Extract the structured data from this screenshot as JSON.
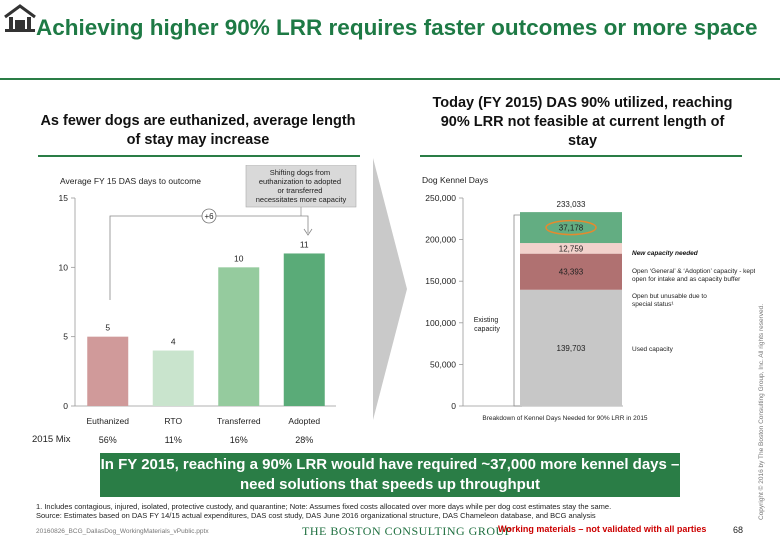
{
  "title": "Achieving higher 90% LRR requires faster outcomes or more space",
  "left_panel": {
    "heading": "As fewer dogs are euthanized, average length of stay may increase",
    "callout": "Shifting dogs from euthanization to adopted or transferred necessitates more capacity",
    "delta_label": "+6",
    "mix_label": "2015 Mix"
  },
  "right_panel": {
    "heading": "Today (FY 2015) DAS 90% utilized, reaching 90% LRR not feasible at current length of stay",
    "existing_label": "Existing capacity",
    "segment_notes": [
      "New capacity needed",
      "Open ‘General’ & ‘Adoption’ capacity - kept open for intake and as capacity buffer",
      "Open but unusable due to special status¹",
      "Used capacity"
    ]
  },
  "chart_data": [
    {
      "type": "bar",
      "ylabel": "Average FY 15 DAS days to outcome",
      "categories": [
        "Euthanized",
        "RTO",
        "Transferred",
        "Adopted"
      ],
      "values": [
        5,
        4,
        10,
        11
      ],
      "value_labels": [
        "5",
        "4",
        "10",
        "11"
      ],
      "mix": [
        "56%",
        "11%",
        "16%",
        "28%"
      ],
      "ylim": [
        0,
        15
      ],
      "yticks": [
        0,
        5,
        10,
        15
      ],
      "ytick_labels": [
        "0",
        "5",
        "10",
        "15"
      ],
      "colors": [
        "#d09a9a",
        "#c9e4cd",
        "#95cb9e",
        "#5aab78"
      ]
    },
    {
      "type": "bar",
      "stacked": true,
      "ylabel": "Dog Kennel Days",
      "xlabel": "Breakdown of Kennel Days Needed for 90% LRR in 2015",
      "categories": [
        ""
      ],
      "series": [
        {
          "values": [
            139703
          ],
          "color": "#c7c7c7"
        },
        {
          "values": [
            43393
          ],
          "color": "#b07171"
        },
        {
          "values": [
            12759
          ],
          "color": "#f2d2cc"
        },
        {
          "values": [
            37178
          ],
          "color": "#63ad82"
        }
      ],
      "segment_labels": [
        "139,703",
        "43,393",
        "12,759",
        "37,178"
      ],
      "total": 233033,
      "total_label": "233,033",
      "ylim": [
        0,
        250000
      ],
      "yticks": [
        0,
        50000,
        100000,
        150000,
        200000,
        250000
      ],
      "ytick_labels": [
        "0",
        "50,000",
        "100,000",
        "150,000",
        "200,000",
        "250,000"
      ],
      "highlight_color": "#e58a2e"
    }
  ],
  "banner": "In FY 2015, reaching a 90% LRR would have required ~37,000 more kennel days – need solutions that speeds up throughput",
  "footnote": "1. Includes contagious, injured, isolated, protective custody, and quarantine; Note: Assumes fixed costs allocated over more days while per dog cost estimates stay the same.",
  "source": "Source: Estimates based on DAS FY 14/15 actual expenditures, DAS cost study, DAS June 2016 organizational structure, DAS Chameleon database, and BCG analysis",
  "file_ref": "20160826_BCG_DallasDog_WorkingMaterials_vPublic.pptx",
  "brand": "THE BOSTON CONSULTING GROUP",
  "watermark": "Working materials – not validated with all parties",
  "page_number": "68",
  "copyright": "Copyright © 2016 by The Boston Consulting Group, Inc. All rights reserved.",
  "colors": {
    "accent": "#2a7d46",
    "title": "#1e7a45",
    "warning": "#cc0000"
  }
}
